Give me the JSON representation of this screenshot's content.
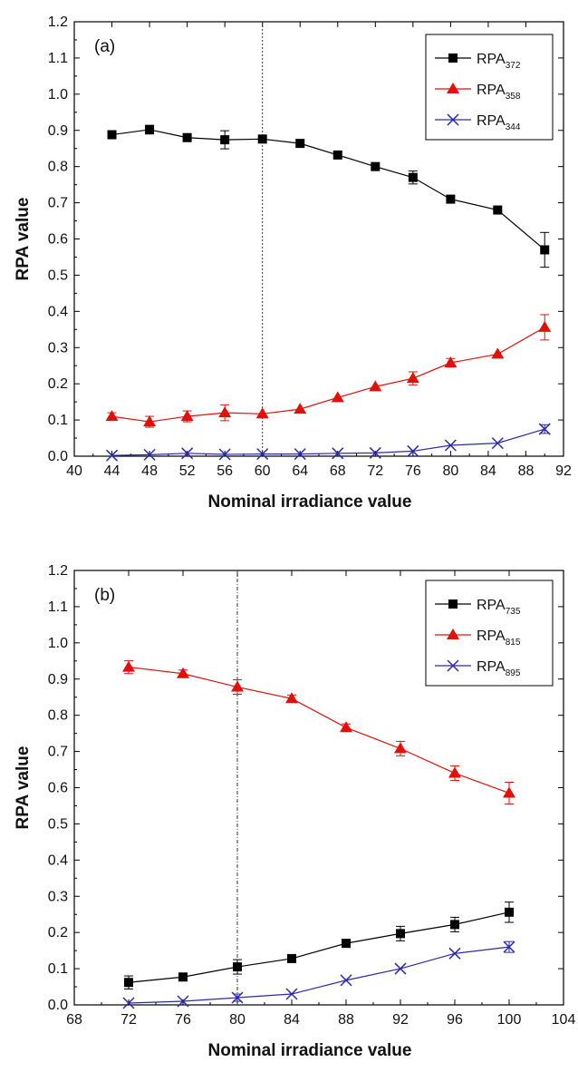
{
  "chart_data": [
    {
      "type": "line",
      "panel_label": "(a)",
      "xlabel": "Nominal irradiance value",
      "ylabel": "RPA value",
      "xlim": [
        40,
        92
      ],
      "ylim": [
        0.0,
        1.2
      ],
      "xticks": [
        "40",
        "44",
        "48",
        "52",
        "56",
        "60",
        "64",
        "68",
        "72",
        "76",
        "80",
        "84",
        "88",
        "92"
      ],
      "yticks": [
        "0.0",
        "0.1",
        "0.2",
        "0.3",
        "0.4",
        "0.5",
        "0.6",
        "0.7",
        "0.8",
        "0.9",
        "1.0",
        "1.1",
        "1.2"
      ],
      "x": [
        44,
        48,
        52,
        56,
        60,
        64,
        68,
        72,
        76,
        80,
        85,
        90
      ],
      "vline": 60,
      "grid": false,
      "legend_position": "top-right",
      "series": [
        {
          "name": "RPA",
          "sub": "372",
          "color": "#000000",
          "marker": "square",
          "values": [
            0.888,
            0.902,
            0.88,
            0.874,
            0.876,
            0.864,
            0.832,
            0.8,
            0.77,
            0.71,
            0.68,
            0.57
          ],
          "errors": [
            0.0,
            0.012,
            0.0,
            0.025,
            0.0,
            0.0,
            0.0,
            0.0,
            0.018,
            0.0,
            0.0,
            0.048
          ]
        },
        {
          "name": "RPA",
          "sub": "358",
          "color": "#e0100a",
          "marker": "triangle",
          "values": [
            0.11,
            0.095,
            0.11,
            0.12,
            0.117,
            0.13,
            0.162,
            0.192,
            0.215,
            0.258,
            0.282,
            0.356
          ],
          "errors": [
            0.01,
            0.015,
            0.015,
            0.022,
            0.0,
            0.0,
            0.0,
            0.0,
            0.018,
            0.012,
            0.0,
            0.035
          ]
        },
        {
          "name": "RPA",
          "sub": "344",
          "color": "#2a2aa8",
          "marker": "x",
          "values": [
            0.002,
            0.004,
            0.008,
            0.005,
            0.006,
            0.006,
            0.008,
            0.009,
            0.014,
            0.03,
            0.036,
            0.075
          ],
          "errors": [
            0.0,
            0.0,
            0.0,
            0.0,
            0.0,
            0.0,
            0.0,
            0.0,
            0.0,
            0.0,
            0.0,
            0.012
          ]
        }
      ]
    },
    {
      "type": "line",
      "panel_label": "(b)",
      "xlabel": "Nominal irradiance value",
      "ylabel": "RPA value",
      "xlim": [
        68,
        104
      ],
      "ylim": [
        0.0,
        1.2
      ],
      "xticks": [
        "68",
        "72",
        "76",
        "80",
        "84",
        "88",
        "92",
        "96",
        "100",
        "104"
      ],
      "yticks": [
        "0.0",
        "0.1",
        "0.2",
        "0.3",
        "0.4",
        "0.5",
        "0.6",
        "0.7",
        "0.8",
        "0.9",
        "1.0",
        "1.1",
        "1.2"
      ],
      "x": [
        72,
        76,
        80,
        84,
        88,
        92,
        96,
        100
      ],
      "vline": 80,
      "grid": false,
      "legend_position": "top-right",
      "series": [
        {
          "name": "RPA",
          "sub": "735",
          "color": "#000000",
          "marker": "square",
          "values": [
            0.062,
            0.077,
            0.105,
            0.128,
            0.17,
            0.197,
            0.222,
            0.256
          ],
          "errors": [
            0.018,
            0.0,
            0.02,
            0.0,
            0.0,
            0.02,
            0.02,
            0.028
          ]
        },
        {
          "name": "RPA",
          "sub": "815",
          "color": "#e0100a",
          "marker": "triangle",
          "values": [
            0.933,
            0.915,
            0.878,
            0.846,
            0.766,
            0.708,
            0.64,
            0.585
          ],
          "errors": [
            0.018,
            0.01,
            0.02,
            0.01,
            0.01,
            0.02,
            0.02,
            0.03
          ]
        },
        {
          "name": "RPA",
          "sub": "895",
          "color": "#2a2aa8",
          "marker": "x",
          "values": [
            0.005,
            0.01,
            0.02,
            0.03,
            0.068,
            0.1,
            0.142,
            0.16
          ],
          "errors": [
            0.0,
            0.0,
            0.01,
            0.0,
            0.0,
            0.0,
            0.0,
            0.015
          ]
        }
      ]
    }
  ]
}
